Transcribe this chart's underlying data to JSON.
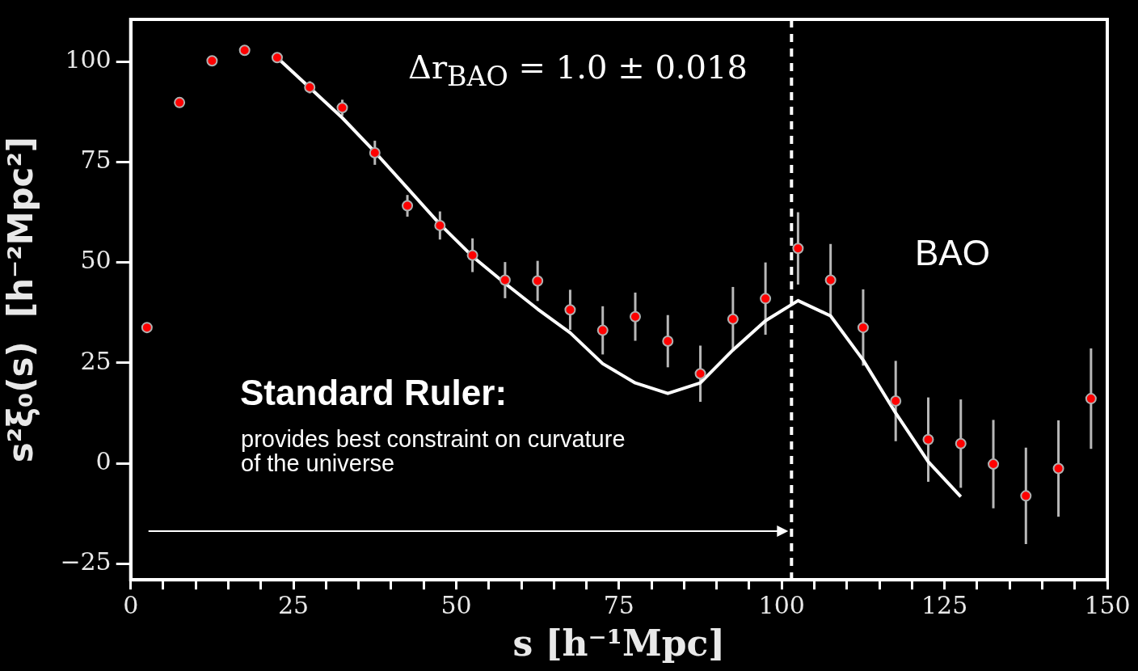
{
  "chart_data": {
    "type": "scatter",
    "xlabel": "s [h⁻¹Mpc]",
    "ylabel": "s²ξ₀(s)  [h⁻²Mpc²]",
    "xlim": [
      0,
      150
    ],
    "ylim": [
      -29,
      110.5
    ],
    "xticks": [
      0,
      {
        "value": 5,
        "label": null
      },
      {
        "value": 10,
        "label": null
      },
      {
        "value": 15,
        "label": null
      },
      {
        "value": 20,
        "label": null
      },
      25,
      {
        "value": 30,
        "label": null
      },
      {
        "value": 35,
        "label": null
      },
      {
        "value": 40,
        "label": null
      },
      {
        "value": 45,
        "label": null
      },
      50,
      {
        "value": 55,
        "label": null
      },
      {
        "value": 60,
        "label": null
      },
      {
        "value": 65,
        "label": null
      },
      {
        "value": 70,
        "label": null
      },
      75,
      {
        "value": 80,
        "label": null
      },
      {
        "value": 85,
        "label": null
      },
      {
        "value": 90,
        "label": null
      },
      {
        "value": 95,
        "label": null
      },
      100,
      {
        "value": 105,
        "label": null
      },
      {
        "value": 110,
        "label": null
      },
      {
        "value": 115,
        "label": null
      },
      {
        "value": 120,
        "label": null
      },
      125,
      {
        "value": 130,
        "label": null
      },
      {
        "value": 135,
        "label": null
      },
      {
        "value": 140,
        "label": null
      },
      {
        "value": 145,
        "label": null
      },
      150
    ],
    "yticks": [
      -25,
      0,
      25,
      50,
      75,
      100
    ],
    "grid": false,
    "legend": false,
    "series": [
      {
        "type": "scatter",
        "color": "#ff0000",
        "marker": "circle",
        "x": [
          2.5,
          7.5,
          12.5,
          17.5,
          22.5,
          27.5,
          32.5,
          37.5,
          42.5,
          47.5,
          52.5,
          57.5,
          62.5,
          67.5,
          72.5,
          77.5,
          82.5,
          87.5,
          92.5,
          97.5,
          102.5,
          107.5,
          112.5,
          117.5,
          122.5,
          127.5,
          132.5,
          137.5,
          142.5,
          147.5
        ],
        "values": [
          33.8,
          89.8,
          100.2,
          102.8,
          101,
          93.6,
          88.5,
          77.3,
          64.1,
          59.2,
          51.8,
          45.6,
          45.4,
          38.2,
          33.1,
          36.5,
          30.4,
          22.3,
          35.9,
          41,
          53.5,
          45.6,
          33.8,
          15.5,
          5.9,
          4.9,
          -0.2,
          -8.1,
          -1.3,
          16.1
        ],
        "errors": [
          null,
          null,
          null,
          null,
          null,
          1.5,
          2,
          3,
          2.7,
          3.5,
          4.2,
          4.5,
          5,
          5,
          6,
          6,
          6.5,
          7,
          8,
          9,
          9,
          9,
          9.5,
          10,
          10.5,
          11,
          11,
          12,
          12,
          12.5
        ]
      },
      {
        "type": "line",
        "color": "#ffffff",
        "marker": "none",
        "line_style": "solid",
        "x": [
          22.5,
          27.5,
          32.5,
          37.5,
          42.5,
          47.5,
          52.5,
          57.5,
          62.5,
          67.5,
          72.5,
          77.5,
          82.5,
          87.5,
          92.5,
          97.5,
          102.5,
          107.5,
          112.5,
          117.5,
          122.5,
          127.5
        ],
        "values": [
          101,
          93.5,
          86,
          77.5,
          68.5,
          59.5,
          51.5,
          44.8,
          38.4,
          32.5,
          24.8,
          20,
          17.4,
          20,
          28.2,
          35.5,
          40.5,
          36.7,
          25.7,
          12.5,
          0.4,
          -8.3
        ]
      }
    ],
    "ref_lines": [
      {
        "axis": "x",
        "value": 101.5,
        "color": "#ffffff",
        "line_style": "dashed"
      }
    ],
    "annotations": [
      "Δr$_{BAO}$ = 1.0 ± 0.018",
      "BAO",
      "Standard Ruler:",
      "provides best constraint on curvature\nof the universe"
    ]
  }
}
